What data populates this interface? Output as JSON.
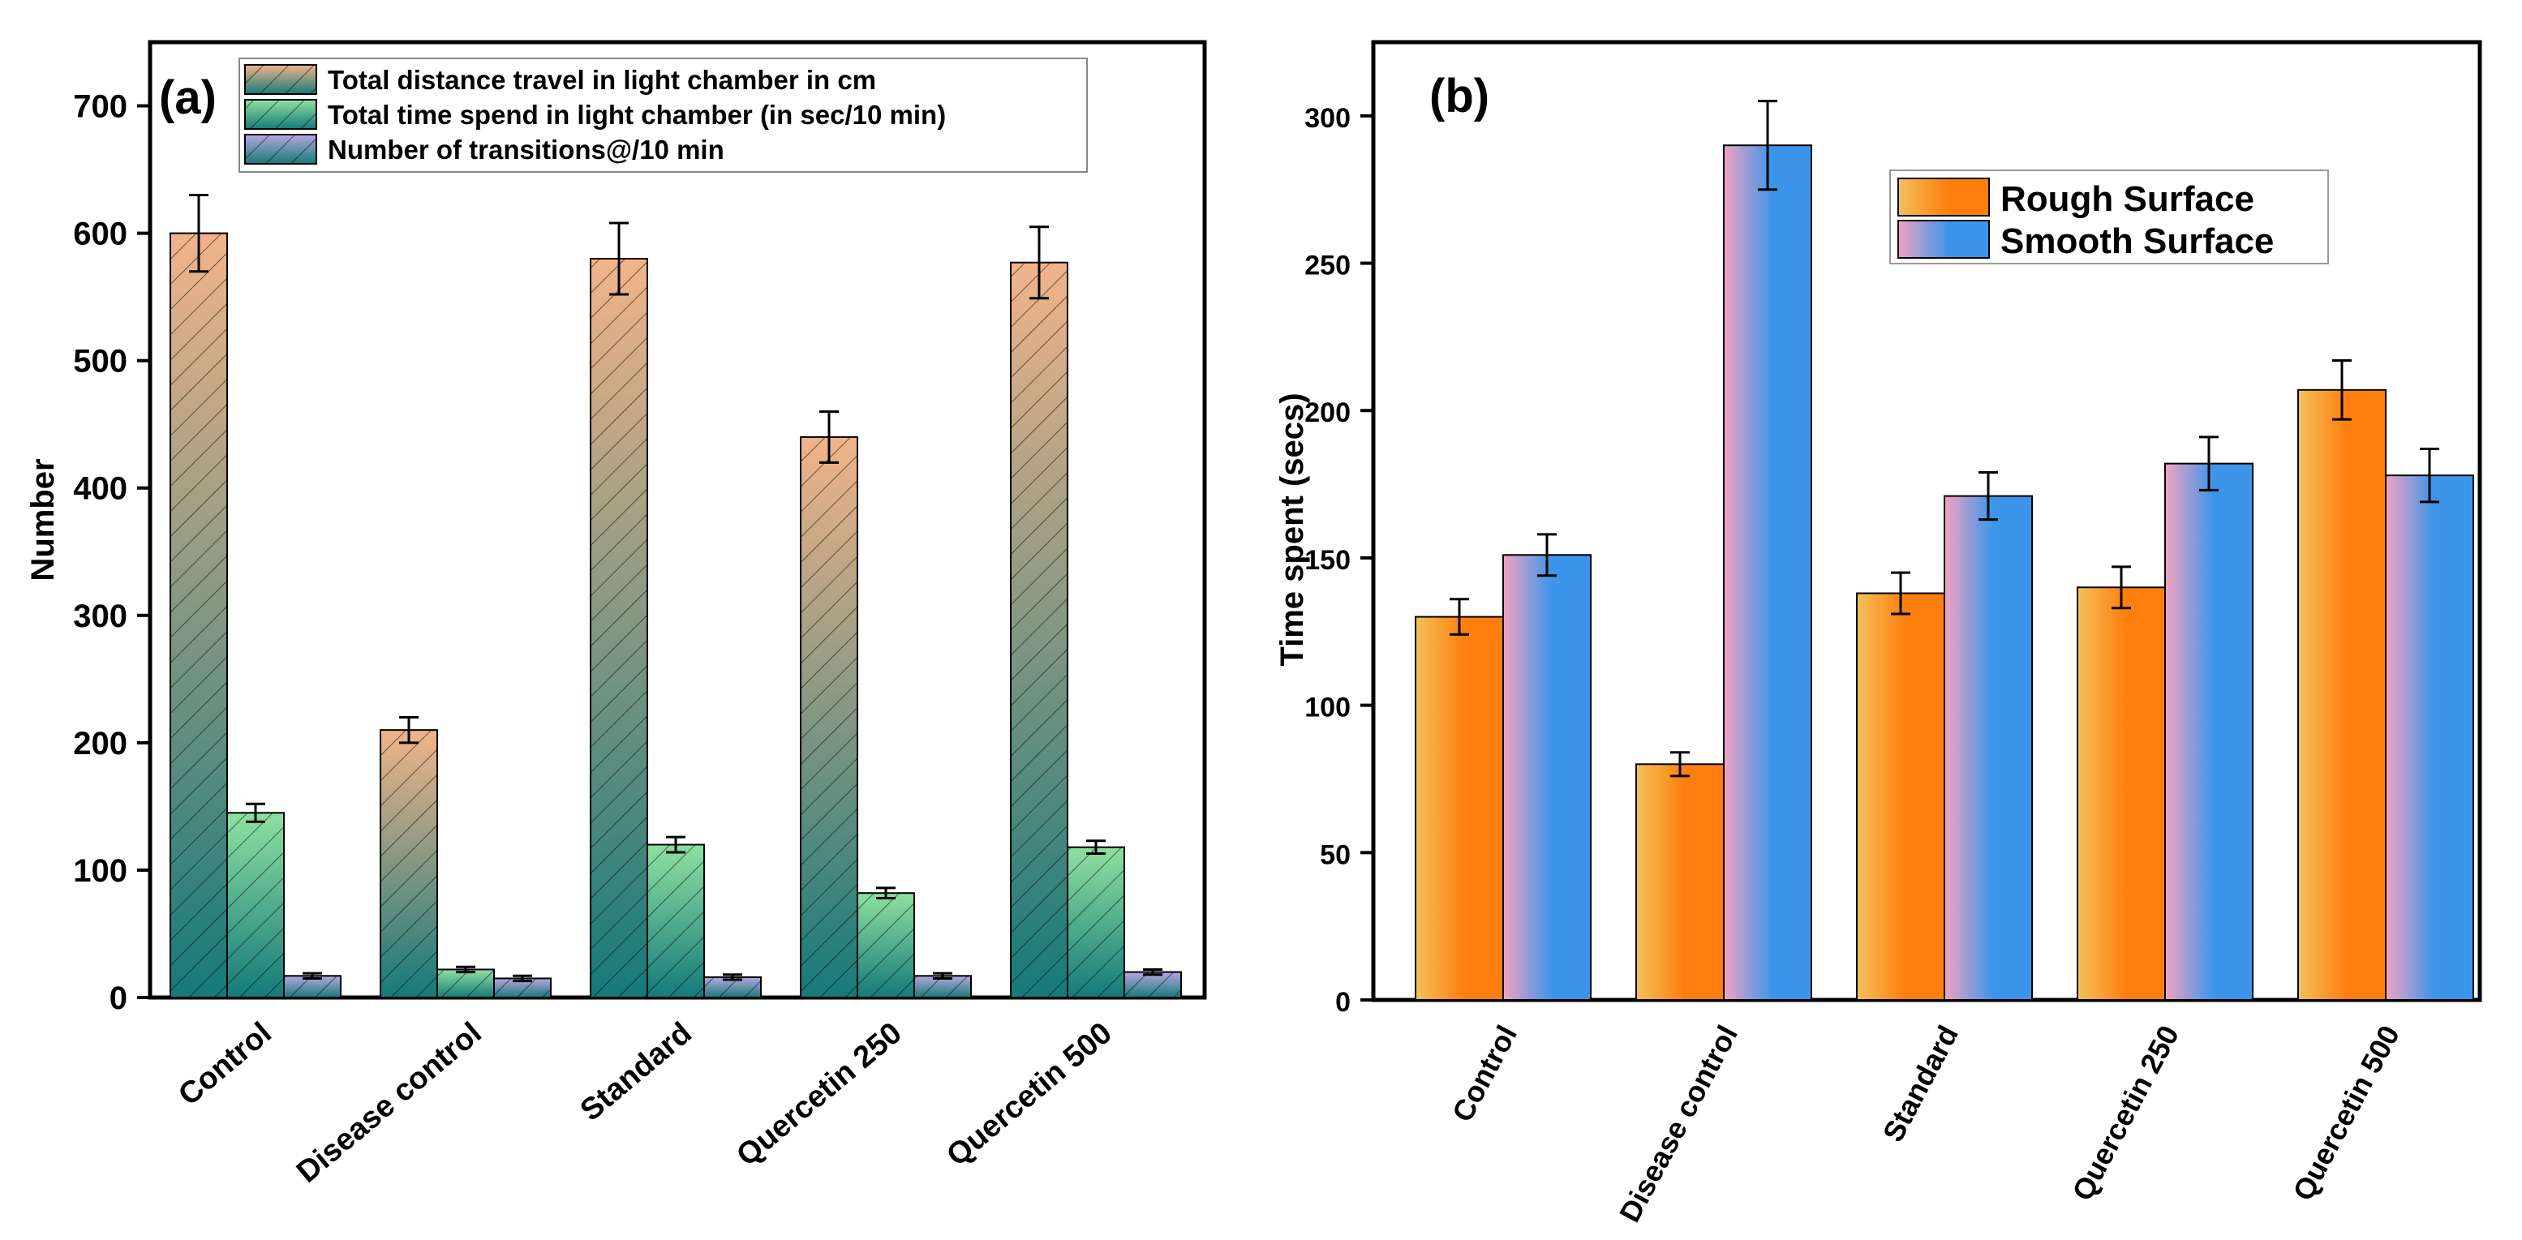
{
  "colors": {
    "panel_a_series": [
      "#f2b48a",
      "#8fe0a0",
      "#b8a7df"
    ],
    "panel_a_base": "#157a7a",
    "orange": "#ff7f0e",
    "orange_light": "#f2c15a",
    "blue": "#3d95ea",
    "blue_light": "#f2a3c1",
    "axis": "#000000"
  },
  "chart_data": [
    {
      "panel": "(a)",
      "type": "bar",
      "title": "",
      "xlabel": "",
      "ylabel": "Number",
      "ylim": [
        0,
        750
      ],
      "yticks": [
        0,
        100,
        200,
        300,
        400,
        500,
        600,
        700
      ],
      "grid": false,
      "legend_position": "top",
      "categories": [
        "Control",
        "Disease control",
        "Standard",
        "Quercetin 250",
        "Quercetin 500"
      ],
      "series": [
        {
          "name": "Total distance travel in light chamber in cm",
          "values": [
            600,
            210,
            580,
            440,
            577
          ],
          "errors": [
            30,
            10,
            28,
            20,
            28
          ]
        },
        {
          "name": "Total time spend in light chamber (in sec/10 min)",
          "values": [
            145,
            22,
            120,
            82,
            118
          ],
          "errors": [
            7,
            2,
            6,
            4,
            5
          ]
        },
        {
          "name": "Number of transitions@/10 min",
          "values": [
            17,
            15,
            16,
            17,
            20
          ],
          "errors": [
            2,
            2,
            2,
            2,
            2
          ]
        }
      ]
    },
    {
      "panel": "(b)",
      "type": "bar",
      "title": "",
      "xlabel": "",
      "ylabel": "Time spent (secs)",
      "ylim": [
        0,
        325
      ],
      "yticks": [
        0,
        50,
        100,
        150,
        200,
        250,
        300
      ],
      "grid": false,
      "legend_position": "top-right",
      "categories": [
        "Control",
        "Disease control",
        "Standard",
        "Quercetin 250",
        "Quercetin 500"
      ],
      "series": [
        {
          "name": "Rough Surface",
          "values": [
            130,
            80,
            138,
            140,
            207
          ],
          "errors": [
            6,
            4,
            7,
            7,
            10
          ]
        },
        {
          "name": "Smooth Surface",
          "values": [
            151,
            290,
            171,
            182,
            178
          ],
          "errors": [
            7,
            15,
            8,
            9,
            9
          ]
        }
      ]
    }
  ]
}
